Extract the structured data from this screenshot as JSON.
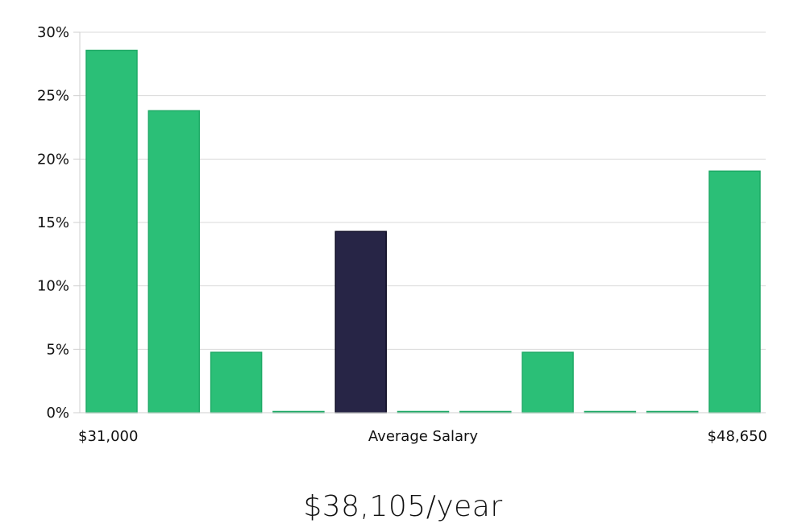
{
  "chart_data": {
    "type": "bar",
    "title": "",
    "xlabel": "Average Salary",
    "ylabel": "",
    "ylim": [
      0,
      30
    ],
    "yticks": [
      0,
      5,
      10,
      15,
      20,
      25,
      30
    ],
    "ytick_format": "{v}%",
    "grid": true,
    "x_start_label": "$31,000",
    "x_end_label": "$48,650",
    "highlight_index": 4,
    "colors": {
      "bar": "#2bbf77",
      "bar_stroke": "#1eaa66",
      "highlight": "#272546",
      "highlight_stroke": "#0e0c24"
    },
    "values": [
      28.57,
      23.81,
      4.76,
      0,
      14.29,
      0,
      0,
      4.76,
      0,
      0,
      19.05
    ]
  },
  "summary": {
    "average_salary_text": "$38,105/year"
  }
}
